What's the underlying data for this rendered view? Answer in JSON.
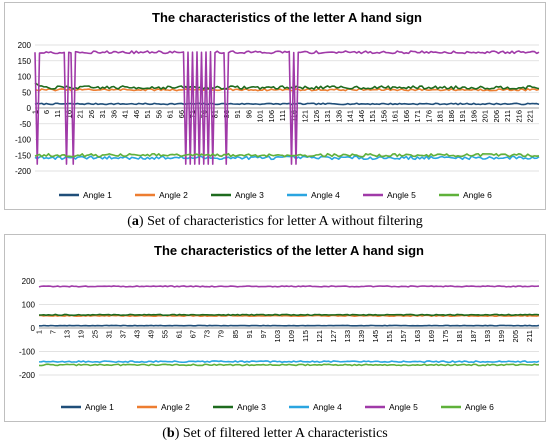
{
  "captions": [
    {
      "label": "a",
      "text": "Set of characteristics for letter A without filtering"
    },
    {
      "label": "b",
      "text": "Set of filtered letter A characteristics"
    }
  ],
  "series_colors": {
    "Angle 1": "#1f4e79",
    "Angle 2": "#ed7d31",
    "Angle 3": "#1e6b1e",
    "Angle 4": "#2aa5e0",
    "Angle 5": "#a03aa8",
    "Angle 6": "#5fb13a"
  },
  "chart_data": [
    {
      "type": "line",
      "title": "The characteristics of the letter A hand sign",
      "x_range": [
        1,
        225
      ],
      "x_ticks": [
        1,
        6,
        11,
        16,
        21,
        26,
        31,
        36,
        41,
        46,
        51,
        56,
        61,
        66,
        71,
        76,
        81,
        86,
        91,
        96,
        101,
        106,
        111,
        116,
        121,
        126,
        131,
        136,
        141,
        146,
        151,
        156,
        161,
        166,
        171,
        176,
        181,
        186,
        191,
        196,
        201,
        206,
        211,
        216,
        221
      ],
      "ylim": [
        -200,
        200
      ],
      "y_ticks": [
        200,
        150,
        100,
        50,
        0,
        -50,
        -100,
        -150,
        -200
      ],
      "grid": true,
      "legend_position": "bottom",
      "series": [
        {
          "name": "Angle 1",
          "base": 13,
          "noise": 2
        },
        {
          "name": "Angle 2",
          "base": 58,
          "noise": 3
        },
        {
          "name": "Angle 3",
          "base": 65,
          "noise": 5,
          "start_value": 80
        },
        {
          "name": "Angle 4",
          "base": -158,
          "noise": 5
        },
        {
          "name": "Angle 5",
          "base": 177,
          "noise": 4,
          "drop_value": -178,
          "drops_at": [
            2,
            15,
            18,
            68,
            70,
            72,
            74,
            76,
            78,
            80,
            86,
            115,
            117
          ]
        },
        {
          "name": "Angle 6",
          "base": -150,
          "noise": 5
        }
      ]
    },
    {
      "type": "line",
      "title": "The characteristics of the letter A hand sign",
      "x_range": [
        1,
        215
      ],
      "x_ticks": [
        1,
        7,
        13,
        19,
        25,
        31,
        37,
        43,
        49,
        55,
        61,
        67,
        73,
        79,
        85,
        91,
        97,
        103,
        109,
        115,
        121,
        127,
        133,
        139,
        145,
        151,
        157,
        163,
        169,
        175,
        181,
        187,
        193,
        199,
        205,
        211
      ],
      "ylim": [
        -200,
        200
      ],
      "y_ticks": [
        200,
        100,
        0,
        -100,
        -200
      ],
      "grid": true,
      "legend_position": "bottom",
      "series": [
        {
          "name": "Angle 1",
          "base": 10,
          "noise": 1
        },
        {
          "name": "Angle 2",
          "base": 52,
          "noise": 2
        },
        {
          "name": "Angle 3",
          "base": 56,
          "noise": 2
        },
        {
          "name": "Angle 4",
          "base": -143,
          "noise": 3
        },
        {
          "name": "Angle 5",
          "base": 177,
          "noise": 2
        },
        {
          "name": "Angle 6",
          "base": -157,
          "noise": 3
        }
      ]
    }
  ]
}
